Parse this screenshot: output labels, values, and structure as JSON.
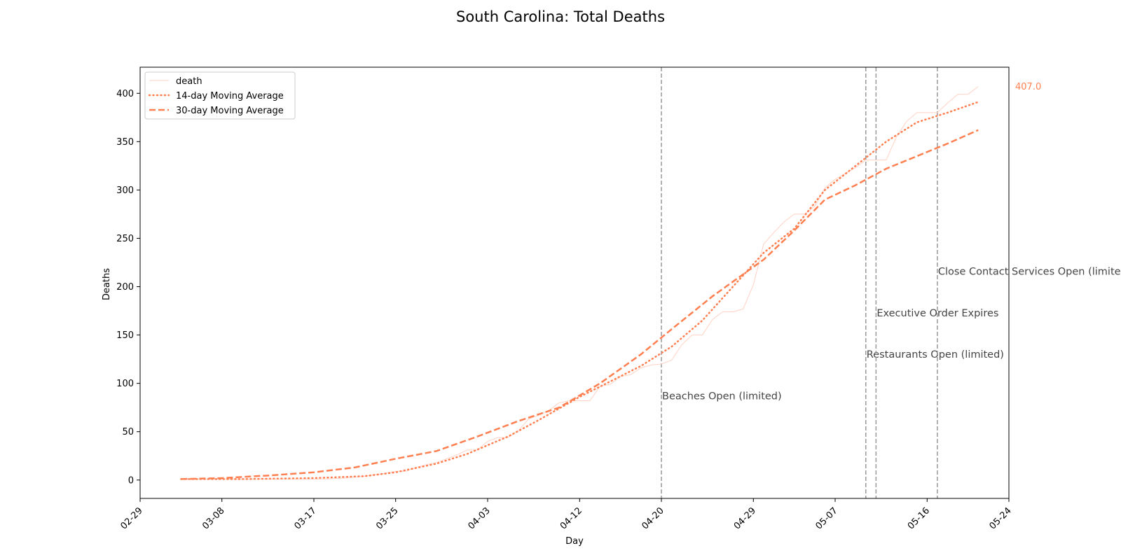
{
  "chart_data": {
    "type": "line",
    "title": "South Carolina: Total Deaths",
    "xlabel": "Day",
    "ylabel": "Deaths",
    "x_ticks": [
      "02-29",
      "03-08",
      "03-17",
      "03-25",
      "04-03",
      "04-12",
      "04-20",
      "04-29",
      "05-07",
      "05-16",
      "05-24"
    ],
    "y_ticks": [
      0,
      50,
      100,
      150,
      200,
      250,
      300,
      350,
      400
    ],
    "xlim": [
      "2020-02-29",
      "2020-05-24"
    ],
    "ylim": [
      -19,
      427
    ],
    "grid": false,
    "legend_placement": "top-left",
    "end_label": "407.0",
    "colors": {
      "series": "#ff7f50",
      "raw_series": "#ffd2c3",
      "event_line": "#999999"
    },
    "series": [
      {
        "name": "death",
        "style": "solid-thin",
        "points": [
          [
            "2020-03-04",
            1
          ],
          [
            "2020-03-06",
            1
          ],
          [
            "2020-03-08",
            1
          ],
          [
            "2020-03-10",
            1
          ],
          [
            "2020-03-12",
            1
          ],
          [
            "2020-03-14",
            1
          ],
          [
            "2020-03-16",
            1
          ],
          [
            "2020-03-18",
            1
          ],
          [
            "2020-03-20",
            2
          ],
          [
            "2020-03-22",
            4
          ],
          [
            "2020-03-24",
            7
          ],
          [
            "2020-03-25",
            9
          ],
          [
            "2020-03-26",
            9
          ],
          [
            "2020-03-27",
            13
          ],
          [
            "2020-03-28",
            16
          ],
          [
            "2020-03-29",
            18
          ],
          [
            "2020-03-30",
            22
          ],
          [
            "2020-03-31",
            26
          ],
          [
            "2020-04-01",
            31
          ],
          [
            "2020-04-02",
            31
          ],
          [
            "2020-04-03",
            40
          ],
          [
            "2020-04-04",
            44
          ],
          [
            "2020-04-05",
            44
          ],
          [
            "2020-04-06",
            51
          ],
          [
            "2020-04-07",
            63
          ],
          [
            "2020-04-08",
            67
          ],
          [
            "2020-04-09",
            72
          ],
          [
            "2020-04-10",
            80
          ],
          [
            "2020-04-11",
            82
          ],
          [
            "2020-04-12",
            82
          ],
          [
            "2020-04-13",
            82
          ],
          [
            "2020-04-14",
            97
          ],
          [
            "2020-04-15",
            99
          ],
          [
            "2020-04-16",
            107
          ],
          [
            "2020-04-17",
            109
          ],
          [
            "2020-04-18",
            116
          ],
          [
            "2020-04-19",
            119
          ],
          [
            "2020-04-20",
            120
          ],
          [
            "2020-04-21",
            124
          ],
          [
            "2020-04-22",
            140
          ],
          [
            "2020-04-23",
            150
          ],
          [
            "2020-04-24",
            150
          ],
          [
            "2020-04-25",
            166
          ],
          [
            "2020-04-26",
            174
          ],
          [
            "2020-04-27",
            174
          ],
          [
            "2020-04-28",
            177
          ],
          [
            "2020-04-29",
            202
          ],
          [
            "2020-04-30",
            244
          ],
          [
            "2020-05-01",
            256
          ],
          [
            "2020-05-02",
            267
          ],
          [
            "2020-05-03",
            275
          ],
          [
            "2020-05-04",
            275
          ],
          [
            "2020-05-05",
            283
          ],
          [
            "2020-05-06",
            302
          ],
          [
            "2020-05-07",
            311
          ],
          [
            "2020-05-08",
            317
          ],
          [
            "2020-05-09",
            323
          ],
          [
            "2020-05-10",
            331
          ],
          [
            "2020-05-11",
            331
          ],
          [
            "2020-05-12",
            331
          ],
          [
            "2020-05-13",
            355
          ],
          [
            "2020-05-14",
            371
          ],
          [
            "2020-05-15",
            380
          ],
          [
            "2020-05-16",
            380
          ],
          [
            "2020-05-17",
            380
          ],
          [
            "2020-05-18",
            390
          ],
          [
            "2020-05-19",
            399
          ],
          [
            "2020-05-20",
            399
          ],
          [
            "2020-05-21",
            407
          ]
        ]
      },
      {
        "name": "14-day Moving Average",
        "style": "dotted",
        "points": [
          [
            "2020-03-04",
            1
          ],
          [
            "2020-03-10",
            1
          ],
          [
            "2020-03-17",
            2
          ],
          [
            "2020-03-22",
            4
          ],
          [
            "2020-03-25",
            8
          ],
          [
            "2020-03-29",
            17
          ],
          [
            "2020-04-01",
            27
          ],
          [
            "2020-04-05",
            45
          ],
          [
            "2020-04-08",
            62
          ],
          [
            "2020-04-12",
            86
          ],
          [
            "2020-04-15",
            102
          ],
          [
            "2020-04-18",
            118
          ],
          [
            "2020-04-21",
            138
          ],
          [
            "2020-04-24",
            165
          ],
          [
            "2020-04-27",
            200
          ],
          [
            "2020-04-30",
            235
          ],
          [
            "2020-05-03",
            260
          ],
          [
            "2020-05-06",
            300
          ],
          [
            "2020-05-09",
            325
          ],
          [
            "2020-05-12",
            350
          ],
          [
            "2020-05-15",
            370
          ],
          [
            "2020-05-18",
            380
          ],
          [
            "2020-05-21",
            391
          ]
        ]
      },
      {
        "name": "30-day Moving Average",
        "style": "dashed",
        "points": [
          [
            "2020-03-04",
            1
          ],
          [
            "2020-03-08",
            2
          ],
          [
            "2020-03-13",
            5
          ],
          [
            "2020-03-17",
            8
          ],
          [
            "2020-03-21",
            13
          ],
          [
            "2020-03-25",
            22
          ],
          [
            "2020-03-29",
            30
          ],
          [
            "2020-04-02",
            45
          ],
          [
            "2020-04-06",
            61
          ],
          [
            "2020-04-10",
            75
          ],
          [
            "2020-04-14",
            100
          ],
          [
            "2020-04-18",
            130
          ],
          [
            "2020-04-21",
            156
          ],
          [
            "2020-04-25",
            190
          ],
          [
            "2020-04-30",
            228
          ],
          [
            "2020-05-03",
            258
          ],
          [
            "2020-05-06",
            290
          ],
          [
            "2020-05-09",
            305
          ],
          [
            "2020-05-12",
            322
          ],
          [
            "2020-05-15",
            335
          ],
          [
            "2020-05-18",
            348
          ],
          [
            "2020-05-21",
            362
          ]
        ]
      }
    ],
    "events": [
      {
        "date": "2020-04-20",
        "label": "Beaches Open (limited)",
        "y": 87
      },
      {
        "date": "2020-05-10",
        "label": "Restaurants Open (limited)",
        "y": 130
      },
      {
        "date": "2020-05-11",
        "label": "Executive Order Expires",
        "y": 173
      },
      {
        "date": "2020-05-17",
        "label": "Close Contact Services Open (limited)",
        "y": 216
      }
    ]
  }
}
